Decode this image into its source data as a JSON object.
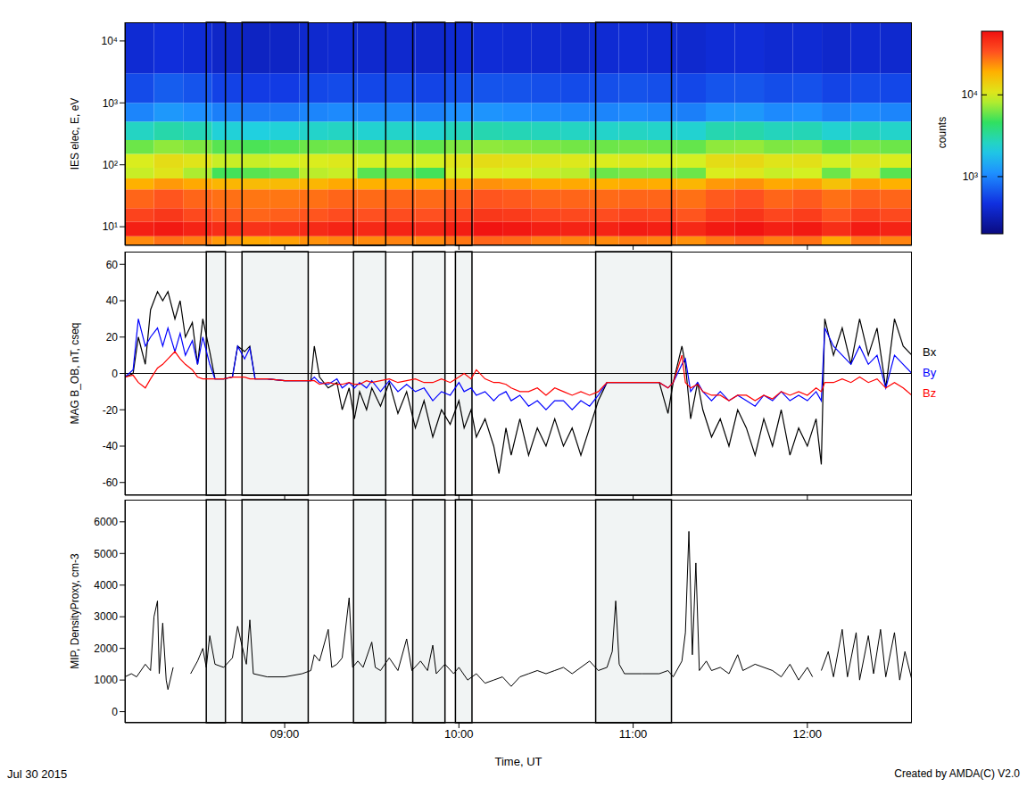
{
  "date": "Jul 30 2015",
  "credit": "Created by AMDA(C) V2.0",
  "shaded_intervals": [
    [
      8.55,
      8.66
    ],
    [
      8.755,
      9.135
    ],
    [
      9.395,
      9.58
    ],
    [
      9.735,
      9.92
    ],
    [
      9.98,
      10.075
    ],
    [
      10.785,
      11.22
    ]
  ],
  "chart_data": [
    {
      "type": "heatmap",
      "y_label": "IES elec, E, eV",
      "log": "y",
      "tick_labels": "y",
      "xlim": [
        8.083,
        12.6
      ],
      "xticks": [
        {
          "value": 9,
          "label": "09:00"
        },
        {
          "value": 10,
          "label": "10:00"
        },
        {
          "value": 11,
          "label": "11:00"
        },
        {
          "value": 12,
          "label": "12:00"
        }
      ],
      "ylim": [
        5,
        20000
      ],
      "yticks": [
        {
          "value": 10,
          "label": "10¹"
        },
        {
          "value": 100,
          "label": "10²"
        },
        {
          "value": 1000,
          "label": "10³"
        },
        {
          "value": 10000,
          "label": "10⁴"
        }
      ],
      "time_edges": [
        8.083,
        8.25,
        8.417,
        8.583,
        8.75,
        8.917,
        9.083,
        9.25,
        9.417,
        9.583,
        9.75,
        9.917,
        10.083,
        10.25,
        10.417,
        10.583,
        10.75,
        10.917,
        11.083,
        11.25,
        11.417,
        11.583,
        11.75,
        11.917,
        12.083,
        12.25,
        12.417,
        12.6
      ],
      "energy_edges": [
        5,
        7,
        12,
        20,
        40,
        60,
        90,
        150,
        250,
        500,
        1000,
        3000,
        20000
      ],
      "counts": [
        [
          24000,
          52000,
          38000,
          30000,
          19000,
          9000,
          10000,
          6000,
          2600,
          1000,
          600,
          420
        ],
        [
          28000,
          55000,
          42000,
          33000,
          22000,
          11000,
          12000,
          7000,
          3000,
          1200,
          700,
          450
        ],
        [
          26000,
          50000,
          36000,
          30000,
          20000,
          8000,
          11000,
          6500,
          2800,
          1100,
          650,
          430
        ],
        [
          22000,
          46000,
          32000,
          28000,
          18000,
          5000,
          9000,
          5500,
          2300,
          950,
          550,
          380
        ],
        [
          20000,
          44000,
          30000,
          27000,
          17000,
          5500,
          9000,
          5200,
          2200,
          900,
          520,
          360
        ],
        [
          21000,
          45000,
          31000,
          27000,
          17000,
          6000,
          9500,
          5500,
          2300,
          900,
          520,
          370
        ],
        [
          23000,
          47000,
          33000,
          28000,
          18000,
          8500,
          10000,
          6000,
          2500,
          1000,
          580,
          400
        ],
        [
          25000,
          50000,
          35000,
          30000,
          20000,
          9000,
          10500,
          6200,
          2600,
          1050,
          600,
          410
        ],
        [
          24000,
          48000,
          34000,
          29000,
          19000,
          5500,
          9500,
          5800,
          2400,
          1000,
          580,
          400
        ],
        [
          25000,
          50000,
          35000,
          30000,
          19500,
          6000,
          10000,
          6000,
          2500,
          1000,
          600,
          400
        ],
        [
          24000,
          49000,
          34000,
          29000,
          19000,
          5000,
          9500,
          5700,
          2400,
          950,
          560,
          390
        ],
        [
          27000,
          53000,
          38000,
          31000,
          21000,
          9500,
          11000,
          6500,
          2700,
          1100,
          620,
          420
        ],
        [
          30000,
          58000,
          42000,
          33000,
          23000,
          10000,
          12000,
          7000,
          2900,
          1150,
          650,
          430
        ],
        [
          29000,
          56000,
          41000,
          32000,
          22000,
          9500,
          11500,
          6800,
          2800,
          1100,
          640,
          420
        ],
        [
          26000,
          52000,
          37000,
          30000,
          20000,
          9000,
          11000,
          6500,
          2700,
          1050,
          620,
          410
        ],
        [
          25000,
          50000,
          36000,
          30000,
          20000,
          8500,
          10500,
          6200,
          2600,
          1000,
          600,
          400
        ],
        [
          24000,
          50000,
          35000,
          29000,
          19000,
          6000,
          10000,
          6000,
          2500,
          1000,
          620,
          420
        ],
        [
          26000,
          54000,
          38000,
          30000,
          20000,
          6500,
          10500,
          6200,
          2600,
          1050,
          640,
          430
        ],
        [
          25000,
          52000,
          37000,
          30000,
          19500,
          6500,
          10000,
          6000,
          2500,
          1000,
          620,
          420
        ],
        [
          23000,
          48000,
          33000,
          28000,
          18000,
          6000,
          9500,
          5800,
          2400,
          950,
          580,
          400
        ],
        [
          27000,
          55000,
          40000,
          32000,
          22000,
          10000,
          12000,
          7000,
          2900,
          1150,
          650,
          430
        ],
        [
          30000,
          58000,
          43000,
          34000,
          23000,
          10500,
          12500,
          7200,
          3000,
          1200,
          660,
          440
        ],
        [
          26000,
          52000,
          37000,
          30000,
          20000,
          9000,
          11000,
          6500,
          2700,
          1050,
          610,
          410
        ],
        [
          28000,
          55000,
          40000,
          32000,
          21000,
          9500,
          11500,
          6800,
          2800,
          1100,
          630,
          420
        ],
        [
          20000,
          46000,
          33000,
          28000,
          16000,
          6000,
          9500,
          5600,
          2400,
          950,
          560,
          390
        ],
        [
          27000,
          54000,
          39000,
          31000,
          21000,
          9000,
          11000,
          6400,
          2700,
          1050,
          600,
          410
        ],
        [
          25000,
          50000,
          36000,
          30000,
          19000,
          5500,
          10000,
          6000,
          2500,
          1000,
          580,
          400
        ]
      ],
      "colorbar": {
        "label": "counts",
        "log": true,
        "range": [
          200,
          60000
        ],
        "ticks": [
          {
            "value": 1000,
            "label": "10³"
          },
          {
            "value": 10000,
            "label": "10⁴"
          }
        ]
      }
    },
    {
      "type": "line",
      "y_label": "MAG B_OB, nT, cseq",
      "tick_labels": "y",
      "legend": "right",
      "xlim": [
        8.083,
        12.6
      ],
      "xticks": [
        {
          "value": 9,
          "label": "09:00"
        },
        {
          "value": 10,
          "label": "10:00"
        },
        {
          "value": 11,
          "label": "11:00"
        },
        {
          "value": 12,
          "label": "12:00"
        }
      ],
      "ylim": [
        -67,
        67
      ],
      "yticks": [
        -60,
        -40,
        -20,
        0,
        20,
        40,
        60
      ],
      "hline": 0,
      "x": [
        8.083,
        8.13,
        8.16,
        8.2,
        8.23,
        8.27,
        8.3,
        8.33,
        8.37,
        8.4,
        8.43,
        8.47,
        8.5,
        8.53,
        8.57,
        8.6,
        8.65,
        8.7,
        8.73,
        8.77,
        8.8,
        8.83,
        8.9,
        9.0,
        9.1,
        9.15,
        9.17,
        9.2,
        9.25,
        9.3,
        9.33,
        9.37,
        9.4,
        9.43,
        9.47,
        9.5,
        9.55,
        9.6,
        9.65,
        9.7,
        9.75,
        9.8,
        9.85,
        9.9,
        9.95,
        10.0,
        10.03,
        10.07,
        10.1,
        10.15,
        10.2,
        10.23,
        10.27,
        10.3,
        10.35,
        10.4,
        10.45,
        10.5,
        10.55,
        10.6,
        10.65,
        10.7,
        10.75,
        10.8,
        10.85,
        10.95,
        11.05,
        11.15,
        11.2,
        11.23,
        11.28,
        11.3,
        11.33,
        11.37,
        11.4,
        11.45,
        11.5,
        11.55,
        11.6,
        11.65,
        11.7,
        11.75,
        11.8,
        11.85,
        11.9,
        11.95,
        12.0,
        12.05,
        12.08,
        12.1,
        12.15,
        12.2,
        12.25,
        12.3,
        12.35,
        12.4,
        12.45,
        12.5,
        12.55,
        12.6
      ],
      "series": [
        {
          "name": "Bx",
          "color": "#000000",
          "values": [
            -2,
            0,
            20,
            5,
            35,
            45,
            40,
            45,
            30,
            40,
            20,
            28,
            5,
            30,
            12,
            -3,
            -3,
            -2,
            15,
            12,
            15,
            -3,
            -3,
            -4,
            -4,
            -4,
            15,
            -2,
            -8,
            -5,
            -20,
            -8,
            -25,
            -10,
            -20,
            -8,
            -18,
            -5,
            -22,
            -10,
            -30,
            -15,
            -35,
            -20,
            -28,
            -15,
            -30,
            -20,
            -35,
            -25,
            -40,
            -55,
            -30,
            -45,
            -25,
            -45,
            -30,
            -40,
            -25,
            -40,
            -30,
            -45,
            -30,
            -15,
            -5,
            -5,
            -5,
            -5,
            -22,
            -5,
            15,
            5,
            -25,
            -5,
            -20,
            -35,
            -25,
            -40,
            -20,
            -30,
            -45,
            -25,
            -40,
            -20,
            -45,
            -30,
            -40,
            -25,
            -50,
            30,
            10,
            25,
            5,
            30,
            10,
            25,
            -8,
            30,
            15,
            10
          ]
        },
        {
          "name": "By",
          "color": "#0000ff",
          "values": [
            -2,
            2,
            30,
            15,
            20,
            25,
            15,
            25,
            12,
            22,
            10,
            18,
            5,
            20,
            5,
            -3,
            -3,
            -2,
            15,
            8,
            14,
            -3,
            -3,
            -4,
            -4,
            -4,
            -2,
            -5,
            -6,
            -3,
            -8,
            -5,
            -8,
            -5,
            -8,
            -4,
            -10,
            -4,
            -10,
            -6,
            -10,
            -8,
            -15,
            -10,
            -12,
            -5,
            -10,
            -8,
            -12,
            -10,
            -15,
            -12,
            -10,
            -15,
            -12,
            -18,
            -15,
            -20,
            -15,
            -15,
            -20,
            -15,
            -18,
            -12,
            -5,
            -5,
            -5,
            -5,
            -8,
            -5,
            5,
            8,
            -10,
            -5,
            -10,
            -15,
            -10,
            -15,
            -12,
            -15,
            -18,
            -12,
            -15,
            -10,
            -15,
            -12,
            -15,
            -10,
            -15,
            25,
            15,
            10,
            5,
            15,
            5,
            10,
            -8,
            10,
            5,
            0
          ]
        },
        {
          "name": "Bz",
          "color": "#ff0000",
          "values": [
            -2,
            -1,
            -5,
            -8,
            -3,
            3,
            5,
            8,
            12,
            8,
            5,
            2,
            -2,
            -3,
            -3,
            -3,
            -3,
            -2,
            -2,
            -2,
            -3,
            -3,
            -3,
            -4,
            -4,
            -4,
            -4,
            -6,
            -5,
            -6,
            -6,
            -5,
            -6,
            -6,
            -4,
            -5,
            -4,
            -3,
            -5,
            -4,
            -3,
            -5,
            -5,
            -3,
            -5,
            -2,
            0,
            -3,
            2,
            -3,
            -5,
            -5,
            -6,
            -8,
            -10,
            -10,
            -8,
            -12,
            -8,
            -10,
            -12,
            -10,
            -12,
            -10,
            -5,
            -5,
            -5,
            -5,
            -8,
            -5,
            10,
            -5,
            -8,
            -6,
            -10,
            -12,
            -12,
            -15,
            -12,
            -12,
            -15,
            -12,
            -14,
            -10,
            -12,
            -10,
            -12,
            -8,
            -10,
            -5,
            -5,
            -3,
            -5,
            -2,
            -5,
            -3,
            -8,
            -5,
            -8,
            -12
          ]
        }
      ]
    },
    {
      "type": "line",
      "y_label": "MIP, DensityProxy, cm-3",
      "x_label": "Time, UT",
      "color": "#000000",
      "xlim": [
        8.083,
        12.6
      ],
      "xticks": [
        {
          "value": 9,
          "label": "09:00"
        },
        {
          "value": 10,
          "label": "10:00"
        },
        {
          "value": 11,
          "label": "11:00"
        },
        {
          "value": 12,
          "label": "12:00"
        }
      ],
      "ylim": [
        -350,
        6700
      ],
      "yticks": [
        0,
        1000,
        2000,
        3000,
        4000,
        5000,
        6000
      ],
      "x": [
        8.083,
        8.12,
        8.15,
        8.2,
        8.23,
        8.25,
        8.27,
        8.28,
        8.3,
        8.32,
        8.33,
        8.36,
        8.38,
        8.46,
        8.5,
        8.53,
        8.55,
        8.57,
        8.6,
        8.65,
        8.7,
        8.73,
        8.75,
        8.78,
        8.8,
        8.82,
        8.9,
        9.0,
        9.1,
        9.15,
        9.17,
        9.2,
        9.25,
        9.27,
        9.3,
        9.33,
        9.37,
        9.39,
        9.42,
        9.45,
        9.5,
        9.52,
        9.55,
        9.6,
        9.65,
        9.7,
        9.73,
        9.78,
        9.82,
        9.85,
        9.87,
        9.92,
        9.97,
        10.0,
        10.05,
        10.1,
        10.15,
        10.2,
        10.25,
        10.3,
        10.35,
        10.4,
        10.45,
        10.5,
        10.55,
        10.6,
        10.65,
        10.7,
        10.75,
        10.8,
        10.85,
        10.88,
        10.9,
        10.92,
        10.95,
        11.05,
        11.15,
        11.2,
        11.23,
        11.28,
        11.3,
        11.32,
        11.34,
        11.36,
        11.38,
        11.42,
        11.45,
        11.5,
        11.55,
        11.6,
        11.63,
        11.7,
        11.75,
        11.8,
        11.85,
        11.9,
        11.95,
        12.0,
        12.03,
        12.05,
        12.08,
        12.12,
        12.15,
        12.2,
        12.23,
        12.28,
        12.3,
        12.35,
        12.38,
        12.42,
        12.45,
        12.5,
        12.53,
        12.56,
        12.6
      ],
      "values": [
        1100,
        1200,
        1100,
        1500,
        1300,
        3000,
        3500,
        1200,
        2800,
        1000,
        700,
        1400,
        null,
        1200,
        1600,
        2000,
        1400,
        2400,
        1500,
        1400,
        1700,
        2700,
        2200,
        1500,
        2900,
        1200,
        1100,
        1100,
        1200,
        1300,
        1800,
        1600,
        2600,
        1400,
        1500,
        1700,
        3600,
        1400,
        1600,
        1400,
        2200,
        1400,
        1300,
        1700,
        1300,
        2300,
        1300,
        1600,
        1300,
        2100,
        1200,
        1500,
        1200,
        1400,
        1000,
        1200,
        900,
        1000,
        1100,
        800,
        1100,
        1200,
        1300,
        1200,
        1300,
        1400,
        1200,
        1400,
        1600,
        1300,
        1400,
        1900,
        3500,
        1500,
        1200,
        1200,
        1200,
        1300,
        1100,
        1600,
        2500,
        5700,
        1800,
        4700,
        1300,
        1600,
        1300,
        1400,
        1200,
        1800,
        1300,
        1500,
        1400,
        1300,
        1100,
        1500,
        1000,
        1400,
        1100,
        null,
        1300,
        1900,
        1100,
        2600,
        1100,
        2500,
        1000,
        2400,
        1200,
        2600,
        1100,
        2500,
        1000,
        1900,
        1000
      ]
    }
  ]
}
